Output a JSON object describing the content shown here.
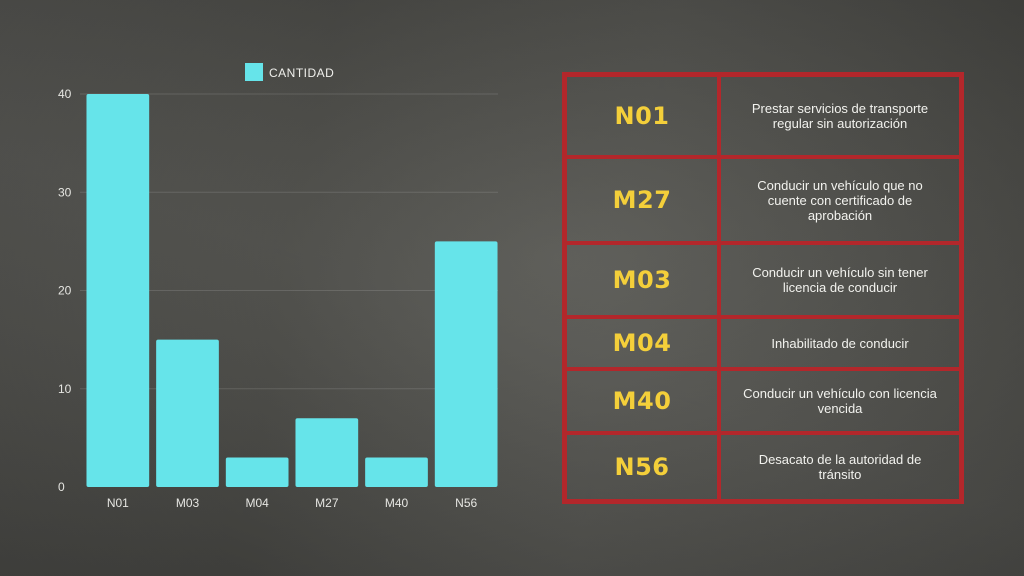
{
  "chart_data": {
    "type": "bar",
    "categories": [
      "N01",
      "M03",
      "M04",
      "M27",
      "M40",
      "N56"
    ],
    "series": [
      {
        "name": "CANTIDAD",
        "values": [
          40,
          15,
          3,
          7,
          3,
          25
        ]
      }
    ],
    "yticks": [
      "0",
      "10",
      "20",
      "30",
      "40"
    ],
    "ylim": [
      0,
      40
    ],
    "grid": true,
    "legend": "top-center",
    "bar_color": "#66e4ea"
  },
  "table": {
    "rows": [
      {
        "code": "N01",
        "description": "Prestar servicios de transporte regular sin autorización"
      },
      {
        "code": "M27",
        "description": "Conducir un vehículo que no cuente con certificado de aprobación"
      },
      {
        "code": "M03",
        "description": "Conducir un vehículo sin tener licencia de conducir"
      },
      {
        "code": "M04",
        "description": "Inhabilitado de conducir"
      },
      {
        "code": "M40",
        "description": "Conducir un vehículo con licencia vencida"
      },
      {
        "code": "N56",
        "description": "Desacato de la autoridad de tránsito"
      }
    ],
    "border_color": "#b3272b",
    "code_color": "#f4cf3a"
  }
}
